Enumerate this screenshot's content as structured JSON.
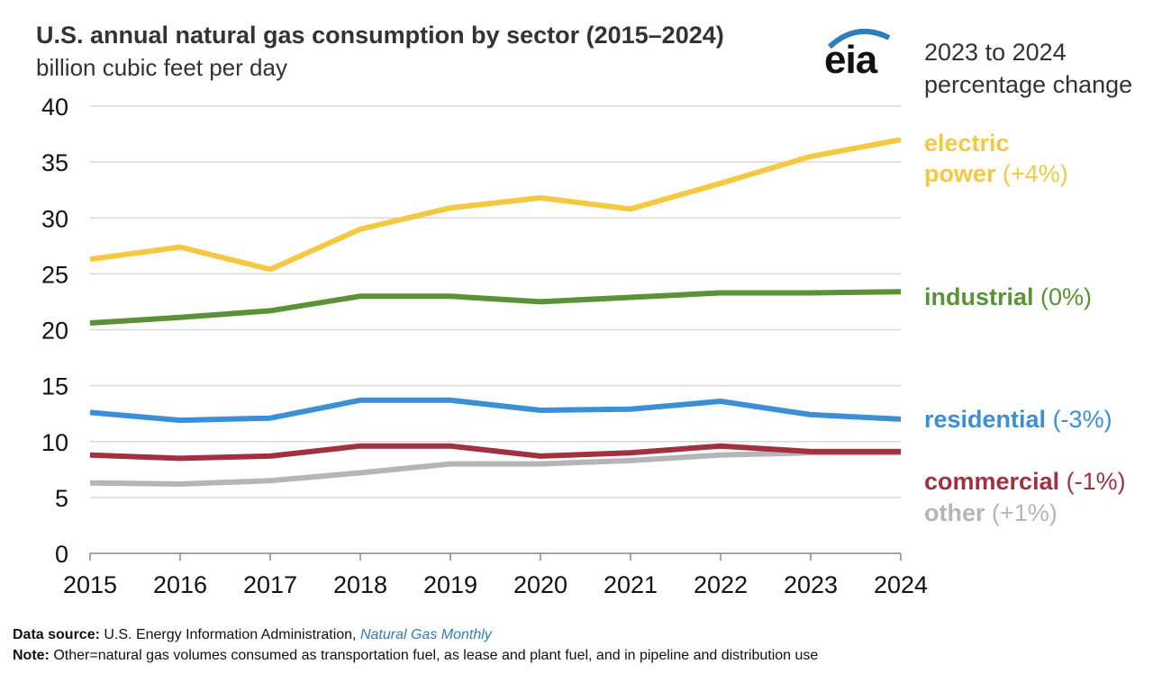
{
  "header": {
    "title": "U.S. annual natural gas consumption by sector (2015–2024)",
    "subtitle": "billion cubic feet per day",
    "pct_header_line1": "2023 to 2024",
    "pct_header_line2": "percentage change",
    "logo_text": "eia"
  },
  "footer": {
    "source_label": "Data source:",
    "source_text": "U.S. Energy Information Administration,",
    "source_publication": "Natural Gas Monthly",
    "note_label": "Note:",
    "note_text": "Other=natural gas volumes consumed as transportation fuel, as lease and plant fuel, and in pipeline and distribution use"
  },
  "colors": {
    "electric": "#f5c842",
    "industrial": "#5b9137",
    "residential": "#3b8fd6",
    "commercial": "#a23140",
    "other": "#b5b5b5",
    "grid": "#d9d9d9",
    "logo_arc": "#2e7db8"
  },
  "chart_data": {
    "type": "line",
    "title": "U.S. annual natural gas consumption by sector (2015–2024)",
    "ylabel": "billion cubic feet per day",
    "xlabel": "",
    "x": [
      "2015",
      "2016",
      "2017",
      "2018",
      "2019",
      "2020",
      "2021",
      "2022",
      "2023",
      "2024"
    ],
    "ylim": [
      0,
      40
    ],
    "yticks": [
      "0",
      "5",
      "10",
      "15",
      "20",
      "25",
      "30",
      "35",
      "40"
    ],
    "grid": true,
    "series": [
      {
        "key": "electric",
        "name": "electric power",
        "label_line1": "electric",
        "label_line2": "power",
        "change": "(+4%)",
        "values": [
          26.3,
          27.4,
          25.4,
          29.0,
          30.9,
          31.8,
          30.8,
          33.1,
          35.5,
          37.0
        ]
      },
      {
        "key": "industrial",
        "name": "industrial",
        "label_line1": "industrial",
        "change": "(0%)",
        "values": [
          20.6,
          21.1,
          21.7,
          23.0,
          23.0,
          22.5,
          22.9,
          23.3,
          23.3,
          23.4
        ]
      },
      {
        "key": "residential",
        "name": "residential",
        "label_line1": "residential",
        "change": "(-3%)",
        "values": [
          12.6,
          11.9,
          12.1,
          13.7,
          13.7,
          12.8,
          12.9,
          13.6,
          12.4,
          12.0
        ]
      },
      {
        "key": "commercial",
        "name": "commercial",
        "label_line1": "commercial",
        "change": "(-1%)",
        "values": [
          8.8,
          8.5,
          8.7,
          9.6,
          9.6,
          8.7,
          9.0,
          9.6,
          9.1,
          9.1
        ]
      },
      {
        "key": "other",
        "name": "other",
        "label_line1": "other",
        "change": "(+1%)",
        "values": [
          6.3,
          6.2,
          6.5,
          7.2,
          8.0,
          8.0,
          8.3,
          8.8,
          9.0,
          9.0
        ]
      }
    ]
  }
}
